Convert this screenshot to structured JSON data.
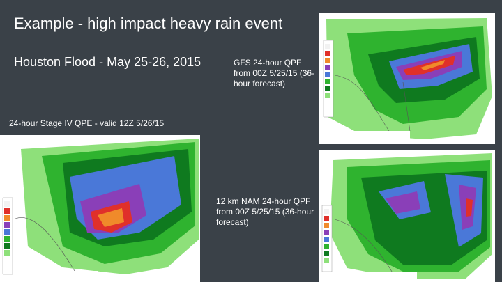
{
  "slide": {
    "title": "Example - high impact heavy rain event",
    "subtitle": "Houston Flood - May 25-26, 2015",
    "captions": {
      "gfs": "GFS 24-hour QPF from 00Z 5/25/15 (36-hour forecast)",
      "stage4": "24-hour Stage IV QPE - valid 12Z 5/26/15",
      "nam": "12 km NAM 24-hour QPF from 00Z 5/25/15 (36-hour forecast)"
    }
  },
  "colors": {
    "background": "#3a4148",
    "text": "#ffffff",
    "precip_light": "#8ee07a",
    "precip_mid": "#2fb32f",
    "precip_dark": "#0f7a1f",
    "precip_blue": "#4a78d8",
    "precip_purple": "#8a3fb8",
    "precip_red": "#e0302a",
    "precip_orange": "#f08a2a"
  }
}
